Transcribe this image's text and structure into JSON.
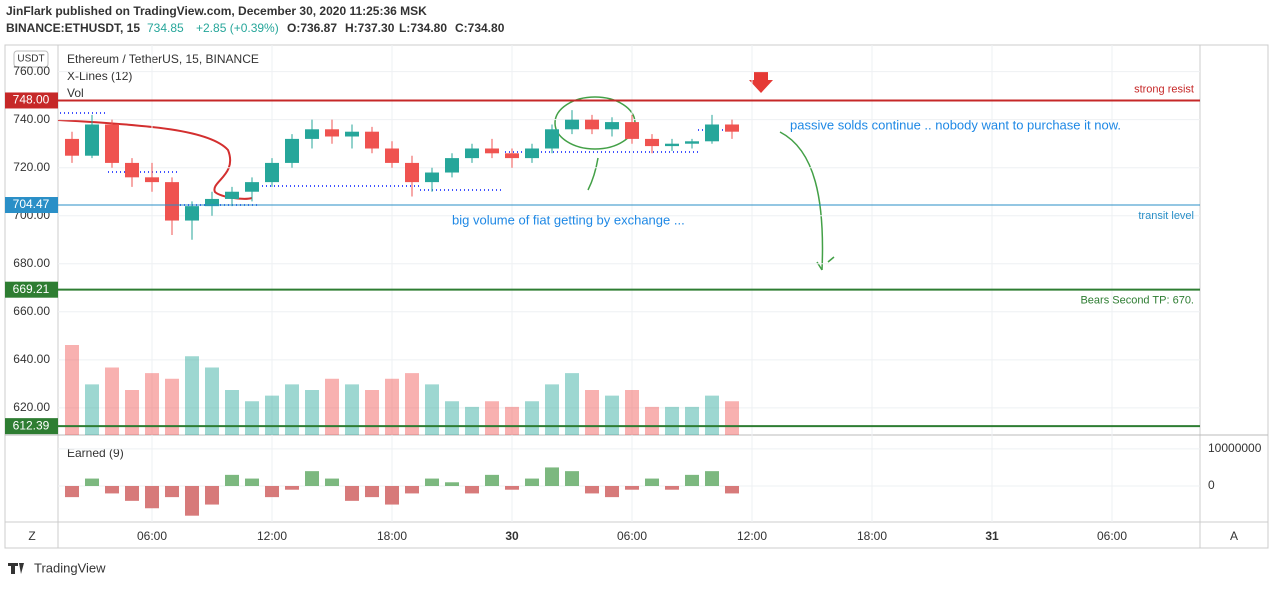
{
  "header": {
    "published": "JinFlark published on TradingView.com, December 30, 2020 11:25:36 MSK",
    "symbol": "BINANCE:ETHUSDT, 15",
    "last": "734.85",
    "change": "+2.85 (+0.39%)",
    "open": "O:736.87",
    "high": "H:737.30",
    "low": "L:734.80",
    "close": "C:734.80"
  },
  "chart_data": {
    "type": "candlestick",
    "title": "Ethereum / TetherUS, 15, BINANCE",
    "currency": "USDT",
    "indicators": [
      "X-Lines (12)",
      "Vol"
    ],
    "x": [
      2,
      3,
      4,
      5,
      6,
      7,
      8,
      9,
      10,
      11,
      12,
      13,
      14,
      15,
      16,
      17,
      18,
      19,
      20,
      21,
      22,
      23,
      24,
      25,
      26,
      27,
      28,
      29,
      30,
      31,
      32,
      33,
      34,
      35
    ],
    "open": [
      732,
      725,
      738,
      722,
      716,
      714,
      698,
      704,
      707,
      710,
      714,
      722,
      732,
      736,
      733,
      735,
      728,
      722,
      714,
      718,
      724,
      728,
      726,
      724,
      728,
      736,
      740,
      736,
      739,
      732,
      729,
      730,
      731,
      738
    ],
    "high": [
      735,
      742,
      740,
      724,
      722,
      716,
      706,
      710,
      712,
      716,
      724,
      734,
      740,
      740,
      738,
      737,
      731,
      725,
      720,
      726,
      730,
      732,
      728,
      730,
      738,
      744,
      742,
      741,
      742,
      734,
      732,
      732,
      742,
      740
    ],
    "low": [
      722,
      724,
      720,
      712,
      710,
      692,
      690,
      700,
      704,
      706,
      712,
      720,
      728,
      730,
      728,
      726,
      720,
      708,
      710,
      716,
      722,
      724,
      720,
      722,
      726,
      734,
      734,
      733,
      730,
      726,
      727,
      728,
      730,
      732
    ],
    "close": [
      725,
      738,
      722,
      716,
      714,
      698,
      704,
      707,
      710,
      714,
      722,
      732,
      736,
      733,
      735,
      728,
      722,
      714,
      718,
      724,
      728,
      726,
      724,
      728,
      736,
      740,
      736,
      739,
      732,
      729,
      730,
      731,
      738,
      735
    ],
    "volume": [
      80,
      45,
      60,
      40,
      55,
      50,
      70,
      60,
      40,
      30,
      35,
      45,
      40,
      50,
      45,
      40,
      50,
      55,
      45,
      30,
      25,
      30,
      25,
      30,
      45,
      55,
      40,
      35,
      40,
      25,
      25,
      25,
      35,
      30
    ],
    "up_color": "#26a69a",
    "down_color": "#ef5350",
    "xlim": [
      1.3,
      58.4
    ],
    "xticks": [
      {
        "value": 6,
        "label": "06:00"
      },
      {
        "value": 12,
        "label": "12:00"
      },
      {
        "value": 18,
        "label": "18:00"
      },
      {
        "value": 24,
        "label": "30"
      },
      {
        "value": 30,
        "label": "06:00"
      },
      {
        "value": 36,
        "label": "12:00"
      },
      {
        "value": 42,
        "label": "18:00"
      },
      {
        "value": 48,
        "label": "31"
      },
      {
        "value": 54,
        "label": "06:00"
      }
    ],
    "ylim": [
      608.7,
      771.1
    ],
    "yticks": [
      {
        "value": 760,
        "label": "760.00"
      },
      {
        "value": 740,
        "label": "740.00"
      },
      {
        "value": 720,
        "label": "720.00"
      },
      {
        "value": 700,
        "label": "700.00"
      },
      {
        "value": 680,
        "label": "680.00"
      },
      {
        "value": 660,
        "label": "660.00"
      },
      {
        "value": 640,
        "label": "640.00"
      },
      {
        "value": 620,
        "label": "620.00"
      }
    ],
    "grid": true,
    "levels": [
      {
        "value": 748,
        "label": "748.00",
        "note": "strong resist",
        "color": "#c62828"
      },
      {
        "value": 704.47,
        "label": "704.47",
        "note": "transit level",
        "color": "#2a8fc7"
      },
      {
        "value": 669.21,
        "label": "669.21",
        "note": "Bears Second TP: 670.",
        "color": "#2e7d32"
      },
      {
        "value": 612.39,
        "label": "612.39",
        "color": "#2e7d32"
      }
    ],
    "annotations": [
      {
        "text": "passive solds continue .. nobody want to purchase it now.",
        "color": "#1e88e5"
      },
      {
        "text": "big volume of fiat getting by exchange ...",
        "color": "#1e88e5"
      }
    ],
    "earned": {
      "name": "Earned (9)",
      "values": [
        -3000000,
        2000000,
        -2000000,
        -4000000,
        -6000000,
        -3000000,
        -8000000,
        -5000000,
        3000000,
        2000000,
        -3000000,
        -1000000,
        4000000,
        2000000,
        -4000000,
        -3000000,
        -5000000,
        -2000000,
        2000000,
        1000000,
        -2000000,
        3000000,
        -1000000,
        2000000,
        5000000,
        4000000,
        -2000000,
        -3000000,
        -1000000,
        2000000,
        -1000000,
        3000000,
        4000000,
        -2000000
      ],
      "ylim": [
        -9700000,
        13200000
      ],
      "yticks": [
        10000000,
        0
      ]
    }
  },
  "footer": {
    "left": "Z",
    "right": "A",
    "brand": "TradingView"
  }
}
